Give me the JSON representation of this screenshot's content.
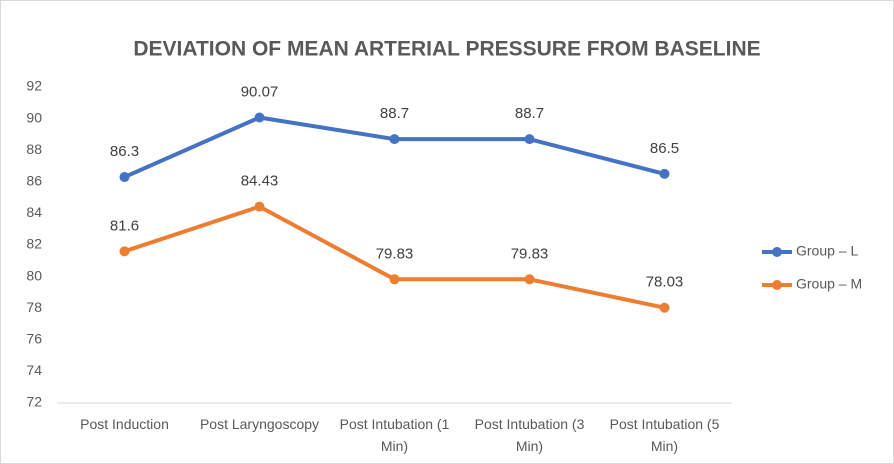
{
  "chart_data": {
    "type": "line",
    "title": "DEVIATION OF MEAN ARTERIAL PRESSURE FROM BASELINE",
    "categories": [
      "Post Induction",
      "Post Laryngoscopy",
      "Post Intubation (1 Min)",
      "Post Intubation (3 Min)",
      "Post Intubation (5 Min)"
    ],
    "series": [
      {
        "name": "Group – L",
        "color": "#4472c4",
        "values": [
          86.3,
          90.07,
          88.7,
          88.7,
          86.5
        ]
      },
      {
        "name": "Group – M",
        "color": "#ed7d31",
        "values": [
          81.6,
          84.43,
          79.83,
          79.83,
          78.03
        ]
      }
    ],
    "ylim": [
      72,
      92
    ],
    "yticks": [
      72,
      74,
      76,
      78,
      80,
      82,
      84,
      86,
      88,
      90,
      92
    ],
    "grid": false,
    "legend": "right"
  }
}
